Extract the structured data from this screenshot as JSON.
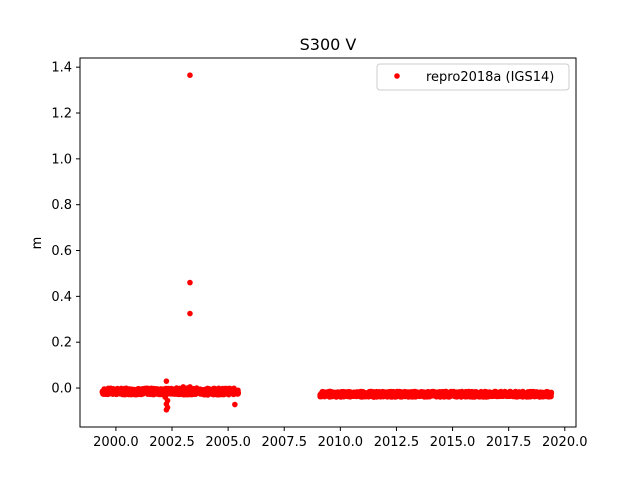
{
  "chart_data": {
    "type": "scatter",
    "title": "S300 V",
    "xlabel": "",
    "ylabel": "m",
    "xlim": [
      1998.4,
      2020.5
    ],
    "ylim": [
      -0.17,
      1.44
    ],
    "x_ticks": [
      {
        "value": 2000.0,
        "label": "2000.0"
      },
      {
        "value": 2002.5,
        "label": "2002.5"
      },
      {
        "value": 2005.0,
        "label": "2005.0"
      },
      {
        "value": 2007.5,
        "label": "2007.5"
      },
      {
        "value": 2010.0,
        "label": "2010.0"
      },
      {
        "value": 2012.5,
        "label": "2012.5"
      },
      {
        "value": 2015.0,
        "label": "2015.0"
      },
      {
        "value": 2017.5,
        "label": "2017.5"
      },
      {
        "value": 2020.0,
        "label": "2020.0"
      }
    ],
    "y_ticks": [
      {
        "value": 0.0,
        "label": "0.0"
      },
      {
        "value": 0.2,
        "label": "0.2"
      },
      {
        "value": 0.4,
        "label": "0.4"
      },
      {
        "value": 0.6,
        "label": "0.6"
      },
      {
        "value": 0.8,
        "label": "0.8"
      },
      {
        "value": 1.0,
        "label": "1.0"
      },
      {
        "value": 1.2,
        "label": "1.2"
      },
      {
        "value": 1.4,
        "label": "1.4"
      }
    ],
    "grid": false,
    "legend_position": "top-right",
    "series": [
      {
        "name": "repro2018a (IGS14)",
        "color": "#ff0000",
        "marker": "dot",
        "points": [
          {
            "x": 1999.4,
            "y": -0.02
          },
          {
            "x": 1999.6,
            "y": -0.025
          },
          {
            "x": 1999.8,
            "y": -0.015
          },
          {
            "x": 2000.0,
            "y": -0.02
          },
          {
            "x": 2000.3,
            "y": -0.025
          },
          {
            "x": 2000.6,
            "y": -0.015
          },
          {
            "x": 2000.9,
            "y": -0.02
          },
          {
            "x": 2001.2,
            "y": -0.01
          },
          {
            "x": 2001.5,
            "y": -0.02
          },
          {
            "x": 2001.8,
            "y": -0.025
          },
          {
            "x": 2002.0,
            "y": -0.015
          },
          {
            "x": 2002.1,
            "y": -0.02
          },
          {
            "x": 2002.2,
            "y": -0.04
          },
          {
            "x": 2002.25,
            "y": -0.07
          },
          {
            "x": 2002.25,
            "y": -0.095
          },
          {
            "x": 2002.3,
            "y": -0.085
          },
          {
            "x": 2002.3,
            "y": -0.055
          },
          {
            "x": 2002.25,
            "y": 0.03
          },
          {
            "x": 2002.5,
            "y": -0.01
          },
          {
            "x": 2002.7,
            "y": 0.0
          },
          {
            "x": 2002.9,
            "y": -0.005
          },
          {
            "x": 2003.0,
            "y": 0.005
          },
          {
            "x": 2003.1,
            "y": -0.02
          },
          {
            "x": 2003.2,
            "y": 0.0
          },
          {
            "x": 2003.3,
            "y": 1.365
          },
          {
            "x": 2003.3,
            "y": 0.46
          },
          {
            "x": 2003.3,
            "y": 0.325
          },
          {
            "x": 2003.3,
            "y": 0.005
          },
          {
            "x": 2003.4,
            "y": -0.005
          },
          {
            "x": 2003.6,
            "y": 0.0
          },
          {
            "x": 2003.8,
            "y": -0.01
          },
          {
            "x": 2004.0,
            "y": -0.005
          },
          {
            "x": 2004.1,
            "y": -0.03
          },
          {
            "x": 2004.3,
            "y": -0.02
          },
          {
            "x": 2004.5,
            "y": -0.01
          },
          {
            "x": 2004.7,
            "y": -0.02
          },
          {
            "x": 2004.9,
            "y": -0.025
          },
          {
            "x": 2005.1,
            "y": -0.015
          },
          {
            "x": 2005.3,
            "y": -0.02
          },
          {
            "x": 2005.3,
            "y": -0.072
          },
          {
            "x": 2005.45,
            "y": -0.02
          },
          {
            "x": 2009.1,
            "y": -0.03
          },
          {
            "x": 2009.5,
            "y": -0.025
          },
          {
            "x": 2009.9,
            "y": -0.035
          },
          {
            "x": 2010.3,
            "y": -0.03
          },
          {
            "x": 2010.7,
            "y": -0.03
          },
          {
            "x": 2011.1,
            "y": -0.035
          },
          {
            "x": 2011.5,
            "y": -0.04
          },
          {
            "x": 2011.9,
            "y": -0.035
          },
          {
            "x": 2012.3,
            "y": -0.03
          },
          {
            "x": 2012.7,
            "y": -0.025
          },
          {
            "x": 2013.1,
            "y": -0.03
          },
          {
            "x": 2013.5,
            "y": -0.02
          },
          {
            "x": 2013.9,
            "y": -0.025
          },
          {
            "x": 2014.3,
            "y": -0.02
          },
          {
            "x": 2014.7,
            "y": -0.015
          },
          {
            "x": 2015.1,
            "y": -0.02
          },
          {
            "x": 2015.5,
            "y": -0.025
          },
          {
            "x": 2015.9,
            "y": -0.02
          },
          {
            "x": 2016.3,
            "y": -0.025
          },
          {
            "x": 2016.7,
            "y": -0.03
          },
          {
            "x": 2017.1,
            "y": -0.035
          },
          {
            "x": 2017.5,
            "y": -0.03
          },
          {
            "x": 2017.9,
            "y": -0.035
          },
          {
            "x": 2018.3,
            "y": -0.03
          },
          {
            "x": 2018.7,
            "y": -0.025
          },
          {
            "x": 2019.1,
            "y": -0.03
          },
          {
            "x": 2019.4,
            "y": -0.025
          }
        ],
        "dense_bands": [
          {
            "x_start": 1999.4,
            "x_end": 2005.45,
            "y_center": -0.015,
            "y_spread": 0.028
          },
          {
            "x_start": 2009.1,
            "x_end": 2019.4,
            "y_center": -0.027,
            "y_spread": 0.024
          }
        ]
      }
    ]
  }
}
